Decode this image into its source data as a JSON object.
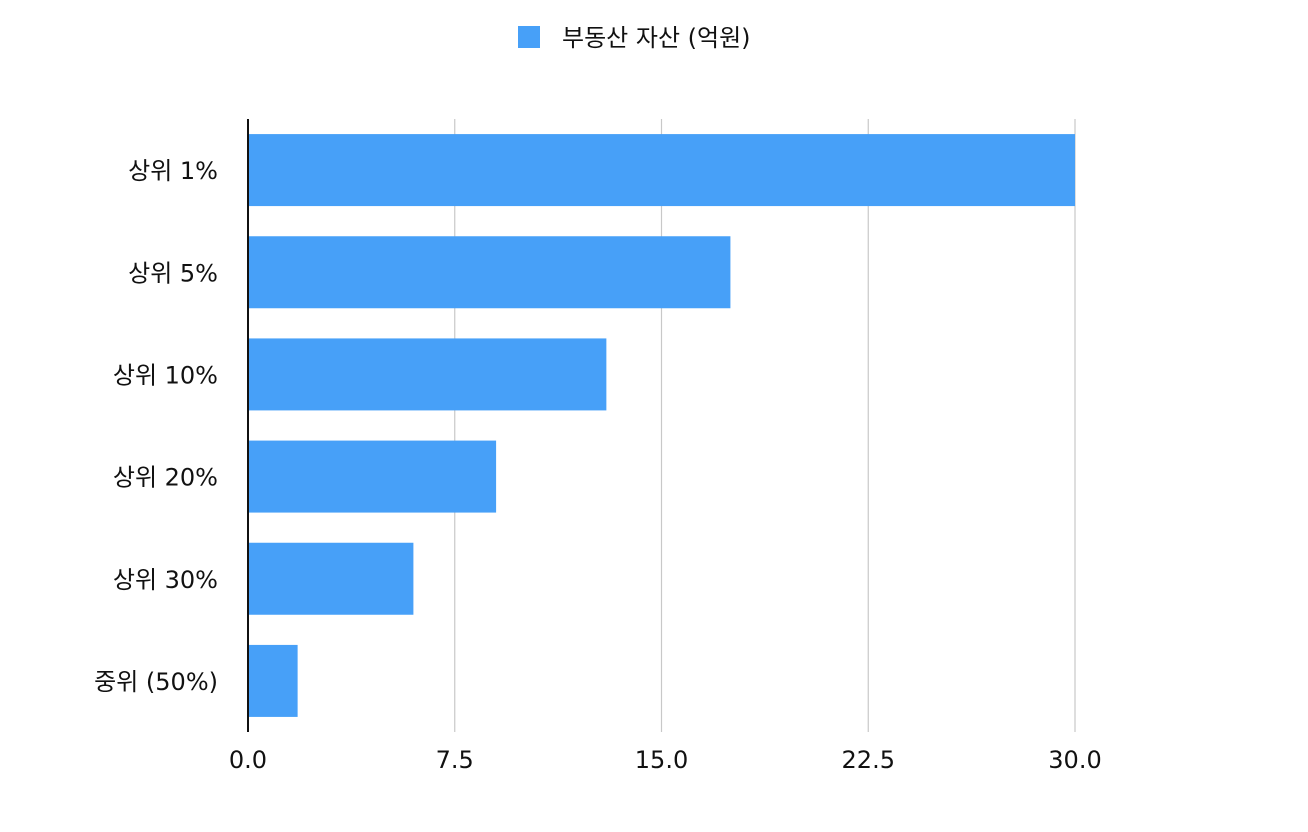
{
  "chart_data": {
    "type": "bar",
    "orientation": "horizontal",
    "categories": [
      "상위 1%",
      "상위 5%",
      "상위 10%",
      "상위 20%",
      "상위 30%",
      "중위 (50%)"
    ],
    "series": [
      {
        "name": "부동산 자산 (억원)",
        "values": [
          30.0,
          17.5,
          13.0,
          9.0,
          6.0,
          1.8
        ],
        "color": "#47a0f8"
      }
    ],
    "xlim": [
      0,
      30
    ],
    "xticks": [
      "0.0",
      "7.5",
      "15.0",
      "22.5",
      "30.0"
    ],
    "grid": true,
    "legend_position": "top-center"
  }
}
